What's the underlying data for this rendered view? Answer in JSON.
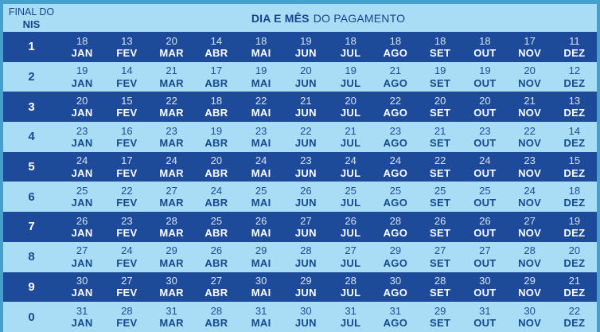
{
  "colors": {
    "frame": "#45a0ce",
    "dark_row_bg": "#1d4b99",
    "light_row_bg": "#a8ddf5",
    "header_bg": "#a8ddf5",
    "navy_text": "#17498f",
    "white_text": "#ffffff"
  },
  "header": {
    "nis_line1": "FINAL DO",
    "nis_line2": "NIS",
    "title_bold": "DIA E MÊS",
    "title_regular": "DO PAGAMENTO"
  },
  "chart_data": {
    "type": "table",
    "title": "DIA E MÊS DO PAGAMENTO",
    "row_header_label": "FINAL DO NIS",
    "columns": [
      "JAN",
      "FEV",
      "MAR",
      "ABR",
      "MAI",
      "JUN",
      "JUL",
      "AGO",
      "SET",
      "OUT",
      "NOV",
      "DEZ"
    ],
    "rows": [
      {
        "final_do_nis": "1",
        "days": [
          18,
          13,
          20,
          14,
          18,
          19,
          18,
          18,
          18,
          18,
          17,
          11
        ]
      },
      {
        "final_do_nis": "2",
        "days": [
          19,
          14,
          21,
          17,
          19,
          20,
          19,
          21,
          19,
          19,
          20,
          12
        ]
      },
      {
        "final_do_nis": "3",
        "days": [
          20,
          15,
          22,
          18,
          22,
          21,
          20,
          22,
          20,
          20,
          21,
          13
        ]
      },
      {
        "final_do_nis": "4",
        "days": [
          23,
          16,
          23,
          19,
          23,
          22,
          21,
          23,
          21,
          23,
          22,
          14
        ]
      },
      {
        "final_do_nis": "5",
        "days": [
          24,
          17,
          24,
          20,
          24,
          23,
          24,
          24,
          22,
          24,
          23,
          15
        ]
      },
      {
        "final_do_nis": "6",
        "days": [
          25,
          22,
          27,
          24,
          25,
          26,
          25,
          25,
          25,
          25,
          24,
          18
        ]
      },
      {
        "final_do_nis": "7",
        "days": [
          26,
          23,
          28,
          25,
          26,
          27,
          26,
          28,
          26,
          26,
          27,
          19
        ]
      },
      {
        "final_do_nis": "8",
        "days": [
          27,
          24,
          29,
          26,
          29,
          28,
          27,
          29,
          27,
          27,
          28,
          20
        ]
      },
      {
        "final_do_nis": "9",
        "days": [
          30,
          27,
          30,
          27,
          30,
          29,
          28,
          30,
          28,
          30,
          29,
          21
        ]
      },
      {
        "final_do_nis": "0",
        "days": [
          31,
          28,
          31,
          28,
          31,
          30,
          31,
          31,
          29,
          31,
          30,
          22
        ]
      }
    ]
  }
}
